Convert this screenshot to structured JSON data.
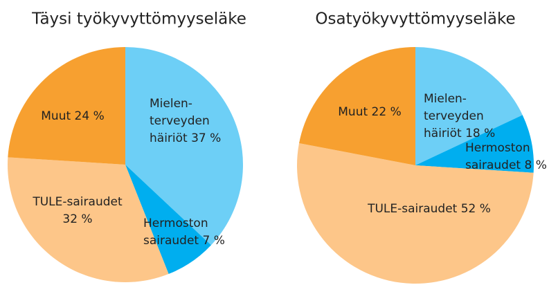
{
  "chart_data": [
    {
      "type": "pie",
      "title": "Täysi työkyvyttömyyseläke",
      "values": [
        37,
        7,
        32,
        24
      ],
      "value_labels": [
        [
          "Mielen-",
          "terveyden",
          "häiriöt 37 %"
        ],
        [
          "Hermoston",
          "sairaudet 7 %"
        ],
        [
          "TULE-sairaudet",
          "32 %"
        ],
        [
          "Muut 24 %"
        ]
      ],
      "colors": [
        "#6dcff6",
        "#00aeef",
        "#fdc689",
        "#f7a030"
      ]
    },
    {
      "type": "pie",
      "title": "Osatyökyvyttömyyseläke",
      "values": [
        18,
        8,
        52,
        22
      ],
      "value_labels": [
        [
          "Mielen-",
          "terveyden",
          "häiriöt 18 %"
        ],
        [
          "Hermoston",
          "sairaudet 8 %"
        ],
        [
          "TULE-sairaudet 52 %"
        ],
        [
          "Muut 22 %"
        ]
      ],
      "colors": [
        "#6dcff6",
        "#00aeef",
        "#fdc689",
        "#f7a030"
      ]
    }
  ]
}
